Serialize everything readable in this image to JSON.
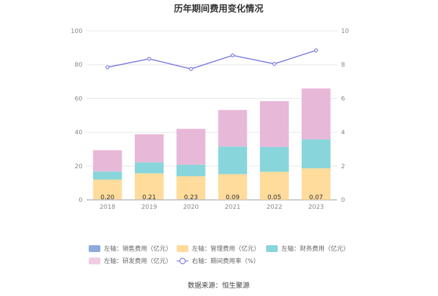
{
  "chart_data": {
    "type": "bar",
    "title": "历年期间费用变化情况",
    "categories": [
      "2018",
      "2019",
      "2020",
      "2021",
      "2022",
      "2023"
    ],
    "left_axis": {
      "min": 0,
      "max": 100,
      "ticks": [
        "0",
        "20",
        "40",
        "60",
        "80",
        "100"
      ]
    },
    "right_axis": {
      "min": 0,
      "max": 10,
      "ticks": [
        "0",
        "2",
        "4",
        "6",
        "8",
        "10"
      ]
    },
    "series": [
      {
        "name": "左轴：销售费用（亿元）",
        "color": "#8faadc",
        "values": [
          0.2,
          0.21,
          0.23,
          0.09,
          0.05,
          0.07
        ]
      },
      {
        "name": "左轴：管理费用（亿元）",
        "color": "#ffdb9c",
        "values": [
          11.8,
          15.5,
          13.8,
          15.1,
          16.6,
          18.6
        ]
      },
      {
        "name": "左轴：财务费用（亿元）",
        "color": "#88d6dc",
        "values": [
          4.8,
          6.5,
          6.8,
          16.4,
          14.7,
          17.1
        ]
      },
      {
        "name": "左轴：研发费用（亿元）",
        "color": "#e8b8d8",
        "values": [
          12.6,
          16.6,
          21.2,
          21.6,
          27.1,
          30.2
        ]
      }
    ],
    "line": {
      "name": "右轴：期间费用率（%）",
      "color": "#7b7be0",
      "values": [
        7.85,
        8.35,
        7.75,
        8.55,
        8.05,
        8.85
      ]
    },
    "bar_labels": [
      "0.20",
      "0.21",
      "0.23",
      "0.09",
      "0.05",
      "0.07"
    ]
  },
  "footer": {
    "source": "数据来源：恒生聚源"
  }
}
